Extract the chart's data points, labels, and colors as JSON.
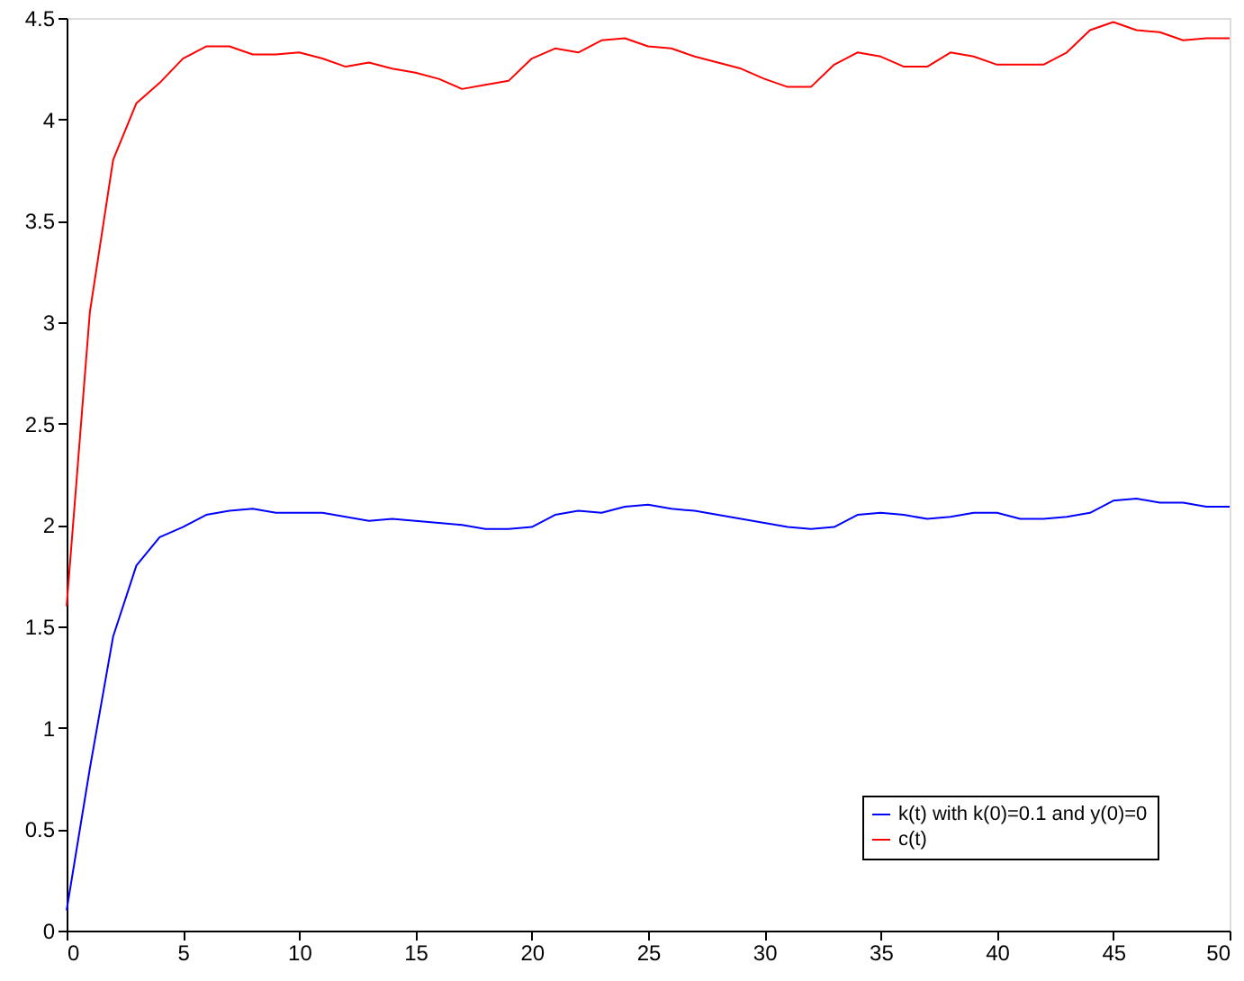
{
  "chart_data": {
    "type": "line",
    "x": [
      0,
      1,
      2,
      3,
      4,
      5,
      6,
      7,
      8,
      9,
      10,
      11,
      12,
      13,
      14,
      15,
      16,
      17,
      18,
      19,
      20,
      21,
      22,
      23,
      24,
      25,
      26,
      27,
      28,
      29,
      30,
      31,
      32,
      33,
      34,
      35,
      36,
      37,
      38,
      39,
      40,
      41,
      42,
      43,
      44,
      45,
      46,
      47,
      48,
      49,
      50
    ],
    "series": [
      {
        "name": "k(t) with k(0)=0.1 and y(0)=0",
        "color": "#0000ff",
        "values": [
          0.1,
          0.8,
          1.45,
          1.8,
          1.94,
          1.99,
          2.05,
          2.07,
          2.08,
          2.06,
          2.06,
          2.06,
          2.04,
          2.02,
          2.03,
          2.02,
          2.01,
          2.0,
          1.98,
          1.98,
          1.99,
          2.05,
          2.07,
          2.06,
          2.09,
          2.1,
          2.08,
          2.07,
          2.05,
          2.03,
          2.01,
          1.99,
          1.98,
          1.99,
          2.05,
          2.06,
          2.05,
          2.03,
          2.04,
          2.06,
          2.06,
          2.03,
          2.03,
          2.04,
          2.06,
          2.12,
          2.13,
          2.11,
          2.11,
          2.09,
          2.09
        ]
      },
      {
        "name": "c(t)",
        "color": "#ff0000",
        "values": [
          1.6,
          3.05,
          3.8,
          4.08,
          4.18,
          4.3,
          4.36,
          4.36,
          4.32,
          4.32,
          4.33,
          4.3,
          4.26,
          4.28,
          4.25,
          4.23,
          4.2,
          4.15,
          4.17,
          4.19,
          4.3,
          4.35,
          4.33,
          4.39,
          4.4,
          4.36,
          4.35,
          4.31,
          4.28,
          4.25,
          4.2,
          4.16,
          4.16,
          4.27,
          4.33,
          4.31,
          4.26,
          4.26,
          4.33,
          4.31,
          4.27,
          4.27,
          4.27,
          4.33,
          4.44,
          4.48,
          4.44,
          4.43,
          4.39,
          4.4,
          4.4
        ]
      }
    ],
    "xlim": [
      0,
      50
    ],
    "xticks": [
      0,
      5,
      10,
      15,
      20,
      25,
      30,
      35,
      40,
      45,
      50
    ],
    "ylim": [
      0,
      4.5
    ],
    "yticks": [
      0,
      0.5,
      1,
      1.5,
      2,
      2.5,
      3,
      3.5,
      4,
      4.5
    ],
    "grid": false,
    "legend": "bottom right",
    "marker": "none",
    "line_style": "solid"
  }
}
